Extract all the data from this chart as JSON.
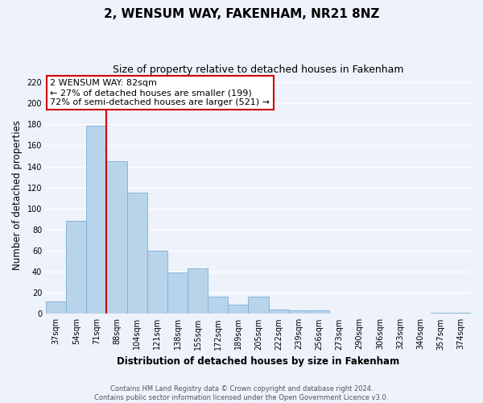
{
  "title": "2, WENSUM WAY, FAKENHAM, NR21 8NZ",
  "subtitle": "Size of property relative to detached houses in Fakenham",
  "xlabel": "Distribution of detached houses by size in Fakenham",
  "ylabel": "Number of detached properties",
  "categories": [
    "37sqm",
    "54sqm",
    "71sqm",
    "88sqm",
    "104sqm",
    "121sqm",
    "138sqm",
    "155sqm",
    "172sqm",
    "189sqm",
    "205sqm",
    "222sqm",
    "239sqm",
    "256sqm",
    "273sqm",
    "290sqm",
    "306sqm",
    "323sqm",
    "340sqm",
    "357sqm",
    "374sqm"
  ],
  "values": [
    12,
    88,
    179,
    145,
    115,
    60,
    39,
    43,
    16,
    9,
    16,
    4,
    3,
    3,
    0,
    0,
    0,
    0,
    0,
    1,
    1
  ],
  "bar_color": "#b8d4ea",
  "bar_edge_color": "#7bafd4",
  "marker_line_color": "#cc0000",
  "annotation_title": "2 WENSUM WAY: 82sqm",
  "annotation_line1": "← 27% of detached houses are smaller (199)",
  "annotation_line2": "72% of semi-detached houses are larger (521) →",
  "box_color": "#ffffff",
  "box_edge_color": "#cc0000",
  "ylim": [
    0,
    225
  ],
  "yticks": [
    0,
    20,
    40,
    60,
    80,
    100,
    120,
    140,
    160,
    180,
    200,
    220
  ],
  "footer_line1": "Contains HM Land Registry data © Crown copyright and database right 2024.",
  "footer_line2": "Contains public sector information licensed under the Open Government Licence v3.0.",
  "background_color": "#eef2fb",
  "grid_color": "#ffffff",
  "title_fontsize": 11,
  "subtitle_fontsize": 9,
  "axis_label_fontsize": 8.5,
  "tick_fontsize": 7,
  "footer_fontsize": 6,
  "annotation_fontsize": 8
}
